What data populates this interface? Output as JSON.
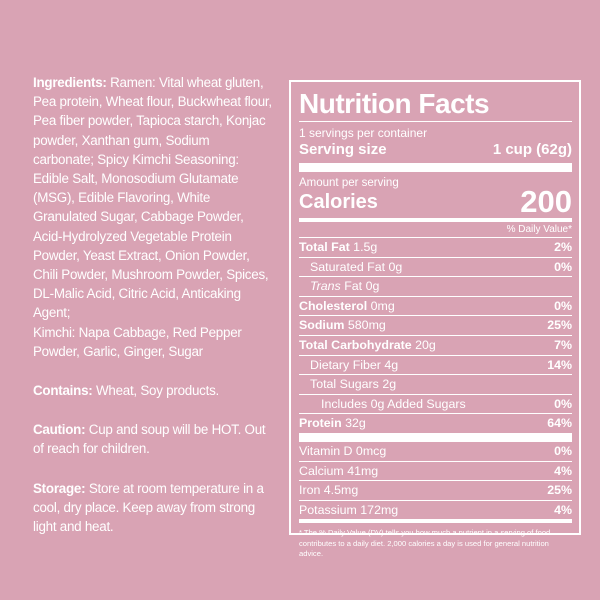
{
  "ingredients": {
    "label": "Ingredients:",
    "ramen": "Ramen: Vital wheat gluten, Pea protein, Wheat flour, Buckwheat flour, Pea fiber powder, Tapioca starch, Konjac powder, Xanthan gum, Sodium carbonate; Spicy Kimchi Seasoning: Edible Salt, Monosodium Glutamate (MSG), Edible Flavoring, White Granulated Sugar, Cabbage Powder, Acid-Hydrolyzed Vegetable Protein Powder, Yeast Extract, Onion Powder, Chili Powder, Mushroom Powder, Spices, DL-Malic Acid, Citric Acid, Anticaking Agent;",
    "kimchi": "Kimchi: Napa Cabbage, Red Pepper Powder, Garlic, Ginger, Sugar"
  },
  "contains": {
    "label": "Contains:",
    "text": "Wheat, Soy products."
  },
  "caution": {
    "label": "Caution:",
    "text": "Cup and soup will be HOT. Out of reach for children."
  },
  "storage": {
    "label": "Storage:",
    "text": "Store at room temperature in a cool, dry place. Keep away from strong light and heat."
  },
  "nutrition": {
    "title": "Nutrition Facts",
    "servings_per_container": "1 servings per container",
    "serving_size_label": "Serving size",
    "serving_size_value": "1 cup (62g)",
    "amount_per_serving": "Amount per serving",
    "calories_label": "Calories",
    "calories_value": "200",
    "dv_header": "% Daily Value*",
    "rows": [
      {
        "label": "Total Fat",
        "amount": "1.5g",
        "dv": "2%"
      },
      {
        "label": "Saturated Fat",
        "amount": "0g",
        "dv": "0%"
      },
      {
        "label": "Trans",
        "suffix": "Fat 0g",
        "dv": ""
      },
      {
        "label": "Cholesterol",
        "amount": "0mg",
        "dv": "0%"
      },
      {
        "label": "Sodium",
        "amount": "580mg",
        "dv": "25%"
      },
      {
        "label": "Total Carbohydrate",
        "amount": "20g",
        "dv": "7%"
      },
      {
        "label": "Dietary Fiber",
        "amount": "4g",
        "dv": "14%"
      },
      {
        "label": "Total Sugars",
        "amount": "2g",
        "dv": ""
      },
      {
        "label": "Includes 0g Added Sugars",
        "amount": "",
        "dv": "0%"
      },
      {
        "label": "Protein",
        "amount": "32g",
        "dv": "64%"
      }
    ],
    "vitamins": [
      {
        "label": "Vitamin D 0mcg",
        "dv": "0%"
      },
      {
        "label": "Calcium 41mg",
        "dv": "4%"
      },
      {
        "label": "Iron 4.5mg",
        "dv": "25%"
      },
      {
        "label": "Potassium 172mg",
        "dv": "4%"
      }
    ],
    "footnote": "* The % Daily Value (DV) tells you how much a nutrient in a serving of food contributes to a daily diet. 2,000 calories a day is used for general nutrition advice."
  }
}
